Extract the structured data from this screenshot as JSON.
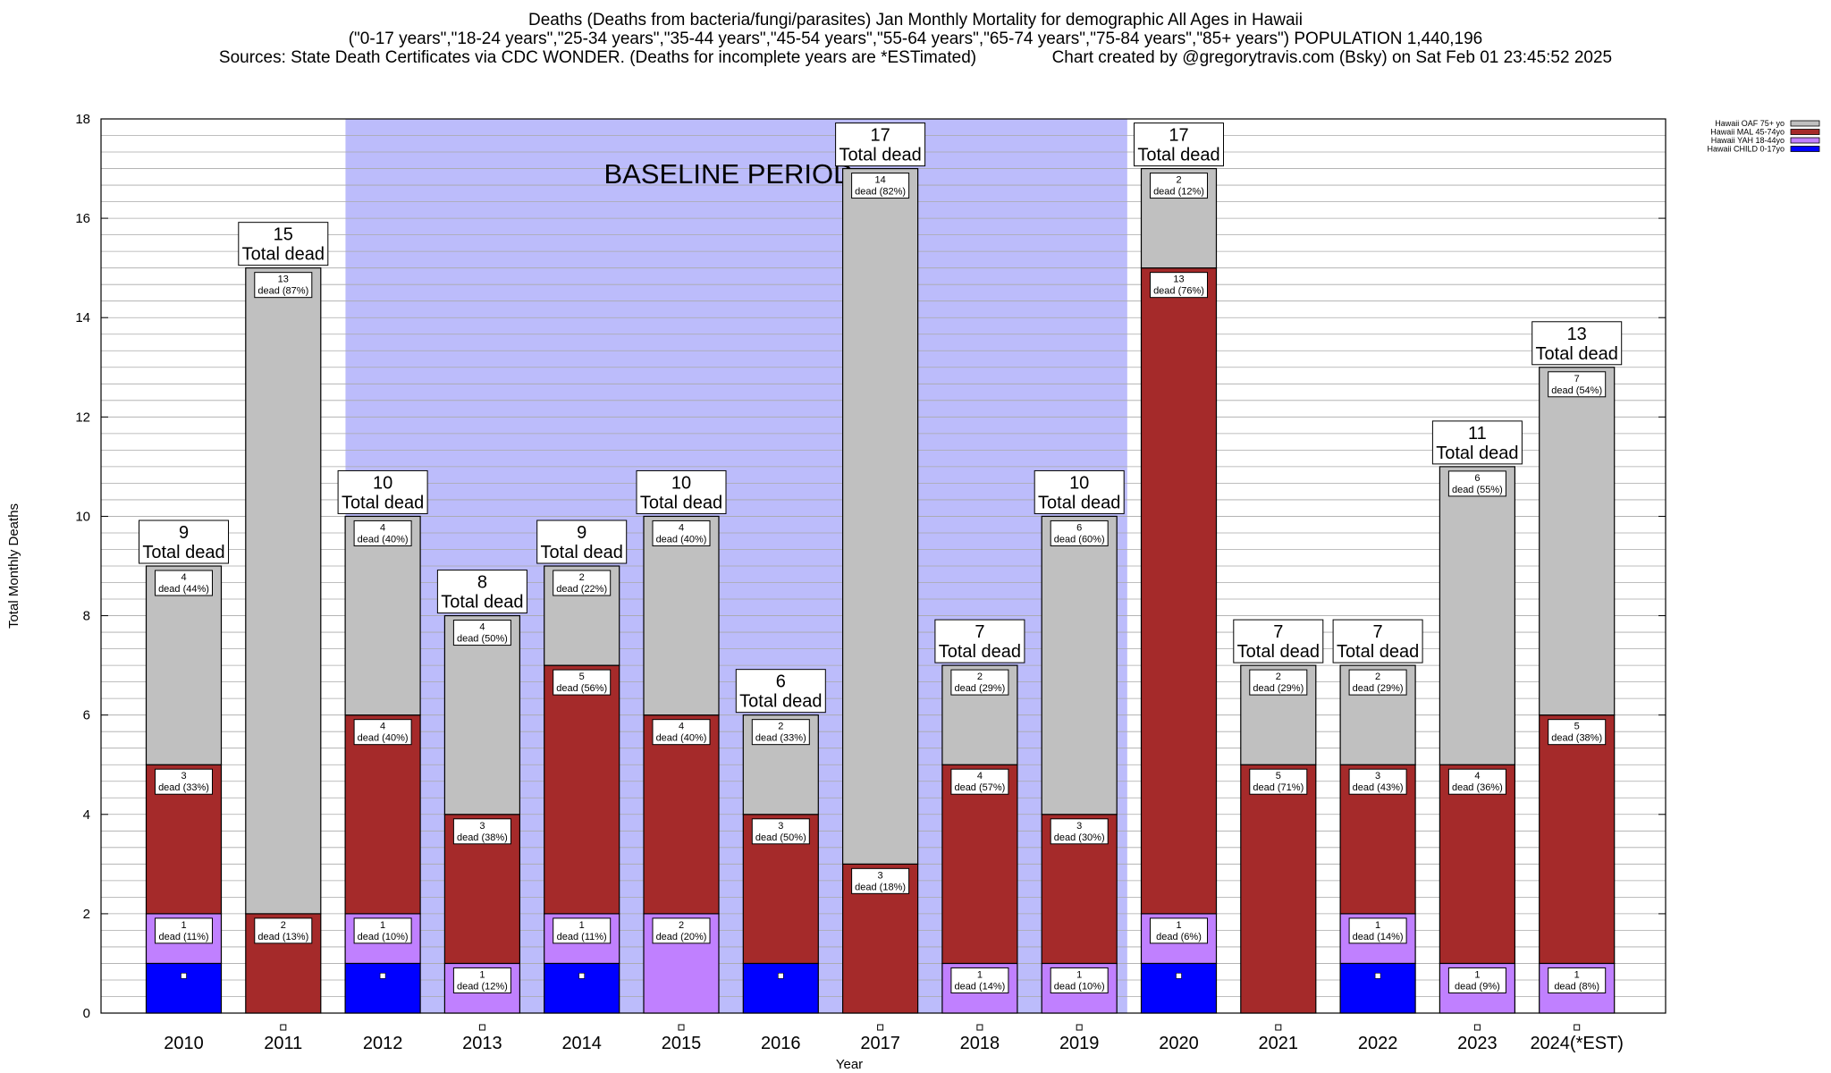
{
  "header": {
    "line1": "Deaths (Deaths from bacteria/fungi/parasites) Jan Monthly Mortality for demographic All Ages in Hawaii",
    "line2": "(\"0-17 years\",\"18-24 years\",\"25-34 years\",\"35-44 years\",\"45-54 years\",\"55-64 years\",\"65-74 years\",\"75-84 years\",\"85+ years\") POPULATION 1,440,196",
    "line3_left": "Sources: State Death Certificates via CDC WONDER. (Deaths for incomplete years are *ESTimated)",
    "line3_right": "Chart created by @gregorytravis.com (Bsky) on Sat Feb 01 23:45:52 2025"
  },
  "chart_data": {
    "type": "bar",
    "stacked": true,
    "xlabel": "Year",
    "ylabel": "Total Monthly Deaths",
    "ylim": [
      0,
      18
    ],
    "yticks": [
      0,
      2,
      4,
      6,
      8,
      10,
      12,
      14,
      16,
      18
    ],
    "grid": true,
    "legend_position": "top-right",
    "annotation": "BASELINE PERIOD",
    "baseline_period": [
      "2012",
      "2019"
    ],
    "total_suffix": "Total dead",
    "segment_label_word": "dead",
    "categories": [
      "2010",
      "2011",
      "2012",
      "2013",
      "2014",
      "2015",
      "2016",
      "2017",
      "2018",
      "2019",
      "2020",
      "2021",
      "2022",
      "2023",
      "2024(*EST)"
    ],
    "totals": [
      9,
      15,
      10,
      8,
      9,
      10,
      6,
      17,
      7,
      10,
      17,
      7,
      7,
      11,
      13
    ],
    "series": [
      {
        "name": "Hawaii CHILD 0-17yo",
        "color": "#0000ff",
        "values": [
          1,
          0,
          1,
          0,
          1,
          0,
          1,
          0,
          0,
          0,
          1,
          0,
          1,
          0,
          0
        ]
      },
      {
        "name": "Hawaii YAH 18-44yo",
        "color": "#c080ff",
        "values": [
          1,
          0,
          1,
          1,
          1,
          2,
          0,
          0,
          1,
          1,
          1,
          0,
          1,
          1,
          1
        ],
        "pct": [
          "11%",
          "",
          "10%",
          "12%",
          "11%",
          "20%",
          "",
          "",
          "14%",
          "10%",
          "6%",
          "",
          "14%",
          "9%",
          "8%"
        ]
      },
      {
        "name": "Hawaii MAL 45-74yo",
        "color": "#a52a2a",
        "values": [
          3,
          2,
          4,
          3,
          5,
          4,
          3,
          3,
          4,
          3,
          13,
          5,
          3,
          4,
          5
        ],
        "pct": [
          "33%",
          "13%",
          "40%",
          "38%",
          "56%",
          "40%",
          "50%",
          "18%",
          "57%",
          "30%",
          "76%",
          "71%",
          "43%",
          "36%",
          "38%"
        ]
      },
      {
        "name": "Hawaii OAF 75+ yo",
        "color": "#c0c0c0",
        "values": [
          4,
          13,
          4,
          4,
          2,
          4,
          2,
          14,
          2,
          6,
          2,
          2,
          2,
          6,
          7
        ],
        "pct": [
          "44%",
          "87%",
          "40%",
          "50%",
          "22%",
          "40%",
          "33%",
          "82%",
          "29%",
          "60%",
          "12%",
          "29%",
          "29%",
          "55%",
          "54%"
        ]
      }
    ]
  }
}
